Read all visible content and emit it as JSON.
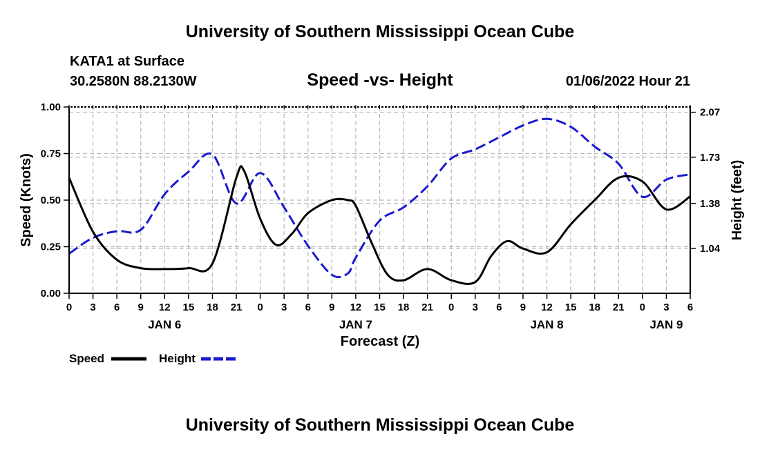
{
  "header": {
    "title": "University of Southern Mississippi Ocean Cube",
    "station": "KATA1 at Surface",
    "coords": "30.2580N  88.2130W",
    "subtitle": "Speed -vs- Height",
    "datetime": "01/06/2022 Hour 21"
  },
  "footer": {
    "title": "University of Southern Mississippi Ocean Cube"
  },
  "colors": {
    "speed": "#000000",
    "height": "#1a1ad0",
    "grid": "#bbbbbb"
  },
  "chart_data": {
    "type": "line",
    "xlabel": "Forecast (Z)",
    "ylabel": "Speed (Knots)",
    "y2label": "Height (feet)",
    "xlim": [
      0,
      78
    ],
    "ylim": [
      0,
      1
    ],
    "y2lim": [
      0.7,
      2.11
    ],
    "x_ticks": [
      0,
      3,
      6,
      9,
      12,
      15,
      18,
      21,
      24,
      27,
      30,
      33,
      36,
      39,
      42,
      45,
      48,
      51,
      54,
      57,
      60,
      63,
      66,
      69,
      72,
      75,
      78
    ],
    "x_tick_labels": [
      "0",
      "3",
      "6",
      "9",
      "12",
      "15",
      "18",
      "21",
      "0",
      "3",
      "6",
      "9",
      "12",
      "15",
      "18",
      "21",
      "0",
      "3",
      "6",
      "9",
      "12",
      "15",
      "18",
      "21",
      "0",
      "3",
      "6"
    ],
    "date_labels": [
      {
        "x": 12,
        "text": "JAN 6"
      },
      {
        "x": 36,
        "text": "JAN 7"
      },
      {
        "x": 60,
        "text": "JAN 8"
      },
      {
        "x": 75,
        "text": "JAN 9"
      }
    ],
    "y_ticks": [
      0,
      0.25,
      0.5,
      0.75,
      1.0
    ],
    "y_tick_labels": [
      "0.00",
      "0.25",
      "0.50",
      "0.75",
      "1.00"
    ],
    "y2_ticks": [
      1.04,
      1.38,
      1.73,
      2.07
    ],
    "y2_tick_labels": [
      "1.04",
      "1.38",
      "1.73",
      "2.07"
    ],
    "legend": [
      {
        "name": "Speed",
        "style": "solid"
      },
      {
        "name": "Height",
        "style": "dashed"
      }
    ],
    "series": [
      {
        "name": "Speed",
        "axis": "left",
        "x": [
          0,
          3,
          6,
          9,
          12,
          15,
          18,
          21,
          22,
          24,
          26,
          28,
          30,
          33,
          35,
          36,
          38,
          40,
          42,
          45,
          48,
          51,
          53,
          55,
          57,
          60,
          63,
          66,
          69,
          72,
          75,
          78
        ],
        "values": [
          0.62,
          0.33,
          0.18,
          0.135,
          0.13,
          0.135,
          0.16,
          0.62,
          0.655,
          0.4,
          0.26,
          0.32,
          0.43,
          0.5,
          0.5,
          0.47,
          0.27,
          0.1,
          0.07,
          0.13,
          0.07,
          0.06,
          0.2,
          0.28,
          0.24,
          0.22,
          0.37,
          0.5,
          0.62,
          0.6,
          0.45,
          0.52
        ]
      },
      {
        "name": "Height",
        "axis": "right",
        "x": [
          0,
          3,
          6,
          9,
          12,
          15,
          18,
          21,
          24,
          27,
          30,
          33,
          35,
          36,
          39,
          42,
          45,
          48,
          51,
          54,
          57,
          60,
          63,
          66,
          69,
          72,
          75,
          78
        ],
        "values": [
          1.0,
          1.12,
          1.17,
          1.18,
          1.45,
          1.62,
          1.75,
          1.38,
          1.61,
          1.35,
          1.06,
          0.84,
          0.85,
          0.97,
          1.25,
          1.35,
          1.51,
          1.72,
          1.79,
          1.88,
          1.97,
          2.02,
          1.96,
          1.81,
          1.68,
          1.43,
          1.56,
          1.6
        ]
      }
    ]
  }
}
